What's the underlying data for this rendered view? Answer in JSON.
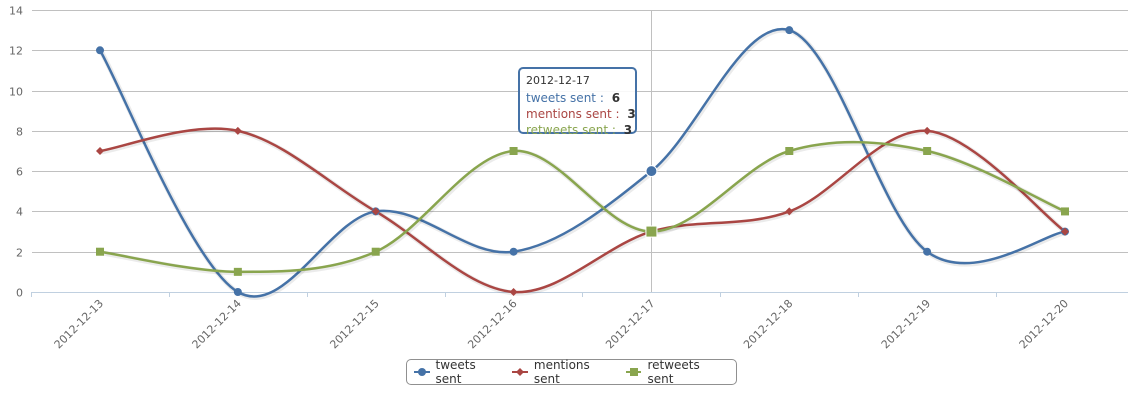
{
  "chart_data": {
    "type": "line",
    "categories": [
      "2012-12-13",
      "2012-12-14",
      "2012-12-15",
      "2012-12-16",
      "2012-12-17",
      "2012-12-18",
      "2012-12-19",
      "2012-12-20"
    ],
    "series": [
      {
        "name": "tweets sent",
        "color": "#4572A7",
        "marker": "circle",
        "values": [
          12,
          0,
          4,
          2,
          6,
          13,
          2,
          3
        ]
      },
      {
        "name": "mentions sent",
        "color": "#AA4643",
        "marker": "diamond",
        "values": [
          7,
          8,
          4,
          0,
          3,
          4,
          8,
          3
        ]
      },
      {
        "name": "retweets sent",
        "color": "#89A54E",
        "marker": "square",
        "values": [
          2,
          1,
          2,
          7,
          3,
          7,
          7,
          4
        ]
      }
    ],
    "yticks": [
      0,
      2,
      4,
      6,
      8,
      10,
      12,
      14
    ],
    "ylim": [
      0,
      14
    ],
    "grid": true,
    "legend": "bottom-center",
    "highlighted_category": "2012-12-17"
  },
  "tooltip": {
    "date": "2012-12-17",
    "rows": [
      {
        "label": "tweets sent",
        "sep": " : ",
        "value": "6",
        "color": "#4572A7"
      },
      {
        "label": "mentions sent",
        "sep": " : ",
        "value": "3",
        "color": "#AA4643"
      },
      {
        "label": "retweets sent",
        "sep": " : ",
        "value": "3",
        "color": "#89A54E"
      }
    ]
  },
  "legend": {
    "items": [
      "tweets sent",
      "mentions sent",
      "retweets sent"
    ]
  }
}
